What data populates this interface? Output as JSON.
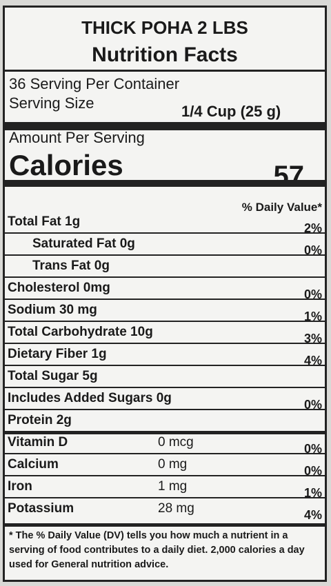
{
  "label": {
    "product": "THICK POHA 2 LBS",
    "heading": "Nutrition Facts",
    "servings": "36 Serving Per Container",
    "serving_size_label": "Serving Size",
    "serving_size": "1/4 Cup (25 g)",
    "amount_per_serving": "Amount Per Serving",
    "calories_label": "Calories",
    "calories": "57",
    "dv_header": "% Daily Value*",
    "rows": [
      {
        "label": "Total Fat 1g",
        "dv": "2%"
      },
      {
        "label": "Saturated Fat 0g",
        "dv": "0%",
        "indent": true
      },
      {
        "label": "Trans Fat 0g",
        "indent": true
      },
      {
        "label": "Cholesterol  0mg",
        "dv": "0%"
      },
      {
        "label": "Sodium 30 mg",
        "dv": "1%"
      },
      {
        "label": "Total Carbohydrate 10g",
        "dv": "3%"
      },
      {
        "label": "Dietary Fiber 1g",
        "dv": "4%"
      },
      {
        "label": "Total Sugar 5g"
      },
      {
        "label": "Includes Added Sugars  0g",
        "dv": "0%"
      },
      {
        "label": "Protein 2g"
      },
      {
        "label": "Vitamin D",
        "amount": "0 mcg",
        "dv": "0%"
      },
      {
        "label": "Calcium",
        "amount": "0 mg",
        "dv": "0%"
      },
      {
        "label": "Iron",
        "amount": "1 mg",
        "dv": "1%"
      },
      {
        "label": "Potassium",
        "amount": "28 mg",
        "dv": "4%"
      }
    ],
    "footnote": "* The % Daily Value (DV) tells you how much a nutrient in a serving of food contributes to a daily diet. 2,000 calories a day used for General nutrition advice."
  }
}
